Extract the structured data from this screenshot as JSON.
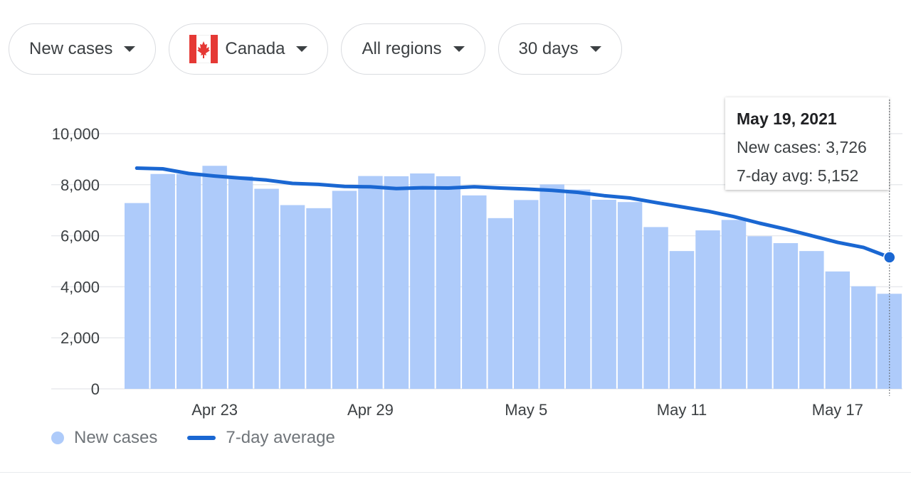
{
  "filters": [
    {
      "label": "New cases"
    },
    {
      "label": "Canada",
      "flag": "canada-flag"
    },
    {
      "label": "All regions"
    },
    {
      "label": "30 days"
    }
  ],
  "tooltip": {
    "date": "May 19, 2021",
    "new_cases": "New cases: 3,726",
    "avg": "7-day avg: 5,152"
  },
  "legend": {
    "new_cases": "New cases",
    "avg": "7-day average"
  },
  "colors": {
    "bar": "#aecbfa",
    "line": "#1a67d2",
    "grid": "#e8eaed",
    "text": "#3c4043"
  },
  "chart_data": {
    "type": "bar",
    "title": "",
    "xlabel": "",
    "ylabel": "",
    "ylim": [
      0,
      10000
    ],
    "yticks": [
      0,
      2000,
      4000,
      6000,
      8000,
      10000
    ],
    "ytick_labels": [
      "0",
      "2,000",
      "4,000",
      "6,000",
      "8,000",
      "10,000"
    ],
    "categories": [
      "Apr 20",
      "Apr 21",
      "Apr 22",
      "Apr 23",
      "Apr 24",
      "Apr 25",
      "Apr 26",
      "Apr 27",
      "Apr 28",
      "Apr 29",
      "Apr 30",
      "May 1",
      "May 2",
      "May 3",
      "May 4",
      "May 5",
      "May 6",
      "May 7",
      "May 8",
      "May 9",
      "May 10",
      "May 11",
      "May 12",
      "May 13",
      "May 14",
      "May 15",
      "May 16",
      "May 17",
      "May 18",
      "May 19"
    ],
    "xtick_labels": [
      {
        "label": "Apr 23",
        "index": 3
      },
      {
        "label": "Apr 29",
        "index": 9
      },
      {
        "label": "May 5",
        "index": 15
      },
      {
        "label": "May 11",
        "index": 21
      },
      {
        "label": "May 17",
        "index": 27
      }
    ],
    "series": [
      {
        "name": "New cases",
        "type": "bar",
        "values": [
          7280,
          8420,
          8420,
          8740,
          8330,
          7840,
          7200,
          7080,
          7760,
          8340,
          8330,
          8440,
          8330,
          7580,
          6690,
          7400,
          8010,
          7810,
          7410,
          7320,
          6340,
          5400,
          6210,
          6620,
          5980,
          5710,
          5400,
          4600,
          4020,
          3726
        ]
      },
      {
        "name": "7-day average",
        "type": "line",
        "values": [
          8650,
          8620,
          8440,
          8340,
          8260,
          8180,
          8050,
          8010,
          7930,
          7920,
          7850,
          7880,
          7870,
          7920,
          7870,
          7830,
          7780,
          7700,
          7570,
          7480,
          7300,
          7130,
          6960,
          6750,
          6490,
          6260,
          6000,
          5740,
          5540,
          5152
        ]
      }
    ]
  }
}
